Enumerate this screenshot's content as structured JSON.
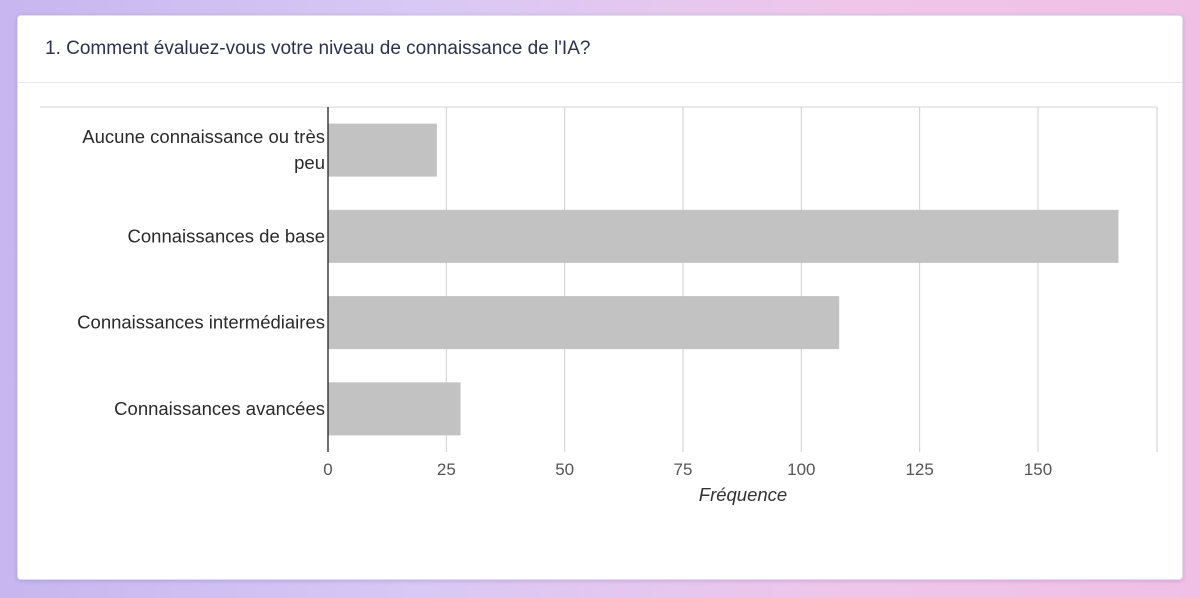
{
  "question": {
    "title": "1. Comment évaluez-vous votre niveau de connaissance de l'IA?"
  },
  "chart_data": {
    "type": "bar",
    "orientation": "horizontal",
    "categories": [
      "Aucune connaissance ou très peu",
      "Connaissances de base",
      "Connaissances intermédiaires",
      "Connaissances avancées"
    ],
    "category_label_lines": [
      [
        "Aucune connaissance ou très",
        "peu"
      ],
      [
        "Connaissances de base"
      ],
      [
        "Connaissances intermédiaires"
      ],
      [
        "Connaissances avancées"
      ]
    ],
    "values": [
      23,
      167,
      108,
      28
    ],
    "xlabel": "Fréquence",
    "ylabel": "",
    "xlim": [
      0,
      175
    ],
    "xticks": [
      0,
      25,
      50,
      75,
      100,
      125,
      150
    ],
    "grid": "vertical",
    "bar_color": "#c2c2c2"
  }
}
